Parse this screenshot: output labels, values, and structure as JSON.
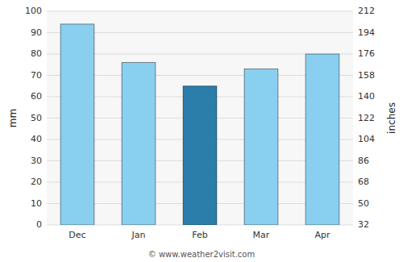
{
  "chart_data": {
    "type": "bar",
    "categories": [
      "Dec",
      "Jan",
      "Feb",
      "Mar",
      "Apr"
    ],
    "values": [
      94,
      76,
      65,
      73,
      80
    ],
    "colors": [
      "#89CFF0",
      "#89CFF0",
      "#2B7DAA",
      "#89CFF0",
      "#89CFF0"
    ],
    "ylabel": "mm",
    "y2label": "inches",
    "ylim": [
      0,
      100
    ],
    "yticks": [
      0,
      10,
      20,
      30,
      40,
      50,
      60,
      70,
      80,
      90,
      100
    ],
    "y2lim": [
      32,
      212
    ],
    "y2ticks": [
      32,
      50,
      68,
      86,
      104,
      122,
      140,
      158,
      176,
      194,
      212
    ],
    "grid": true,
    "annotations": [
      "© www.weather2visit.com"
    ]
  }
}
